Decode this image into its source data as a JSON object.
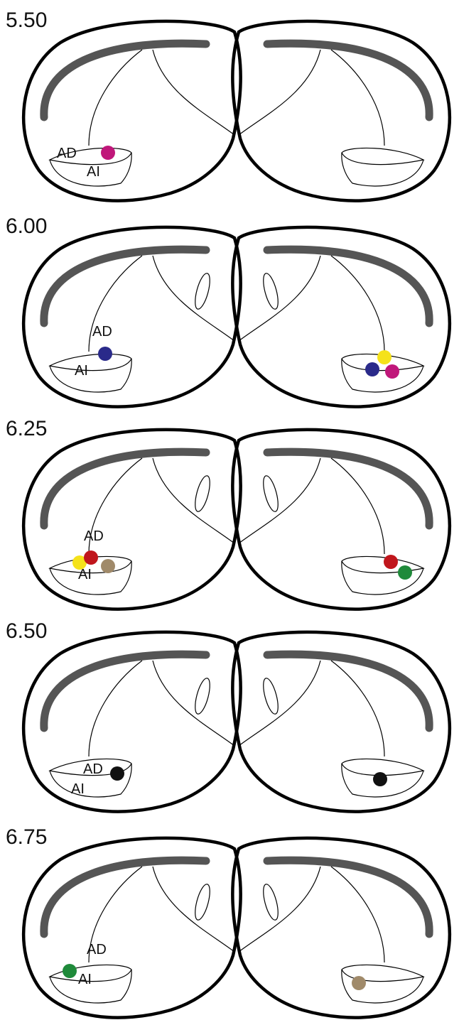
{
  "sections": [
    {
      "label": "5.50",
      "ad": "AD",
      "ai": "AI"
    },
    {
      "label": "6.00",
      "ad": "AD",
      "ai": "AI"
    },
    {
      "label": "6.25",
      "ad": "AD",
      "ai": "AI"
    },
    {
      "label": "6.50",
      "ad": "AD",
      "ai": "AI"
    },
    {
      "label": "6.75",
      "ad": "AD",
      "ai": "AI"
    }
  ]
}
